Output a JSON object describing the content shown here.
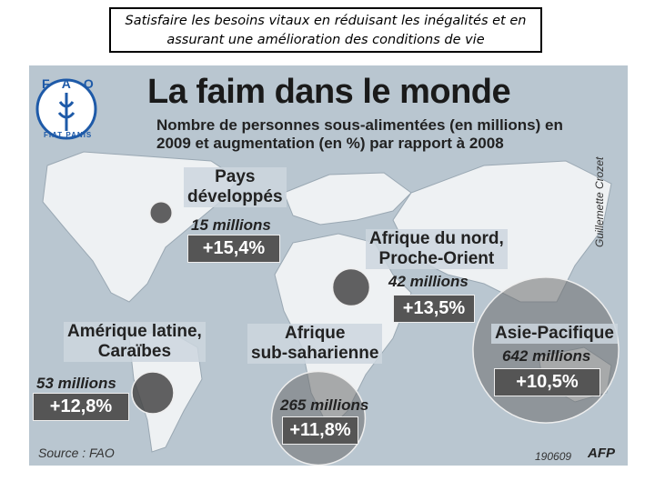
{
  "slide_caption": "Satisfaire les besoins vitaux en réduisant les inégalités et en assurant une amélioration des conditions de vie",
  "infographic": {
    "title": "La faim dans le monde",
    "subtitle": "Nombre de personnes sous-alimentées (en millions) en 2009 et augmentation (en %) par rapport à 2008",
    "logo": {
      "acronym": "FAO",
      "motto": "FIAT PANIS"
    },
    "regions": [
      {
        "name": [
          "Pays",
          "développés"
        ],
        "amount": "15 millions",
        "millions": 15,
        "change": "+15,4%"
      },
      {
        "name": [
          "Afrique du nord,",
          "Proche-Orient"
        ],
        "amount": "42 millions",
        "millions": 42,
        "change": "+13,5%"
      },
      {
        "name": [
          "Amérique latine,",
          "Caraïbes"
        ],
        "amount": "53 millions",
        "millions": 53,
        "change": "+12,8%"
      },
      {
        "name": [
          "Afrique",
          "sub-saharienne"
        ],
        "amount": "265 millions",
        "millions": 265,
        "change": "+11,8%"
      },
      {
        "name": [
          "Asie-Pacifique"
        ],
        "amount": "642 millions",
        "millions": 642,
        "change": "+10,5%"
      }
    ],
    "source": "Source : FAO",
    "date_code": "190609",
    "agency": "AFP",
    "credit": "Guillemette Crozet"
  }
}
